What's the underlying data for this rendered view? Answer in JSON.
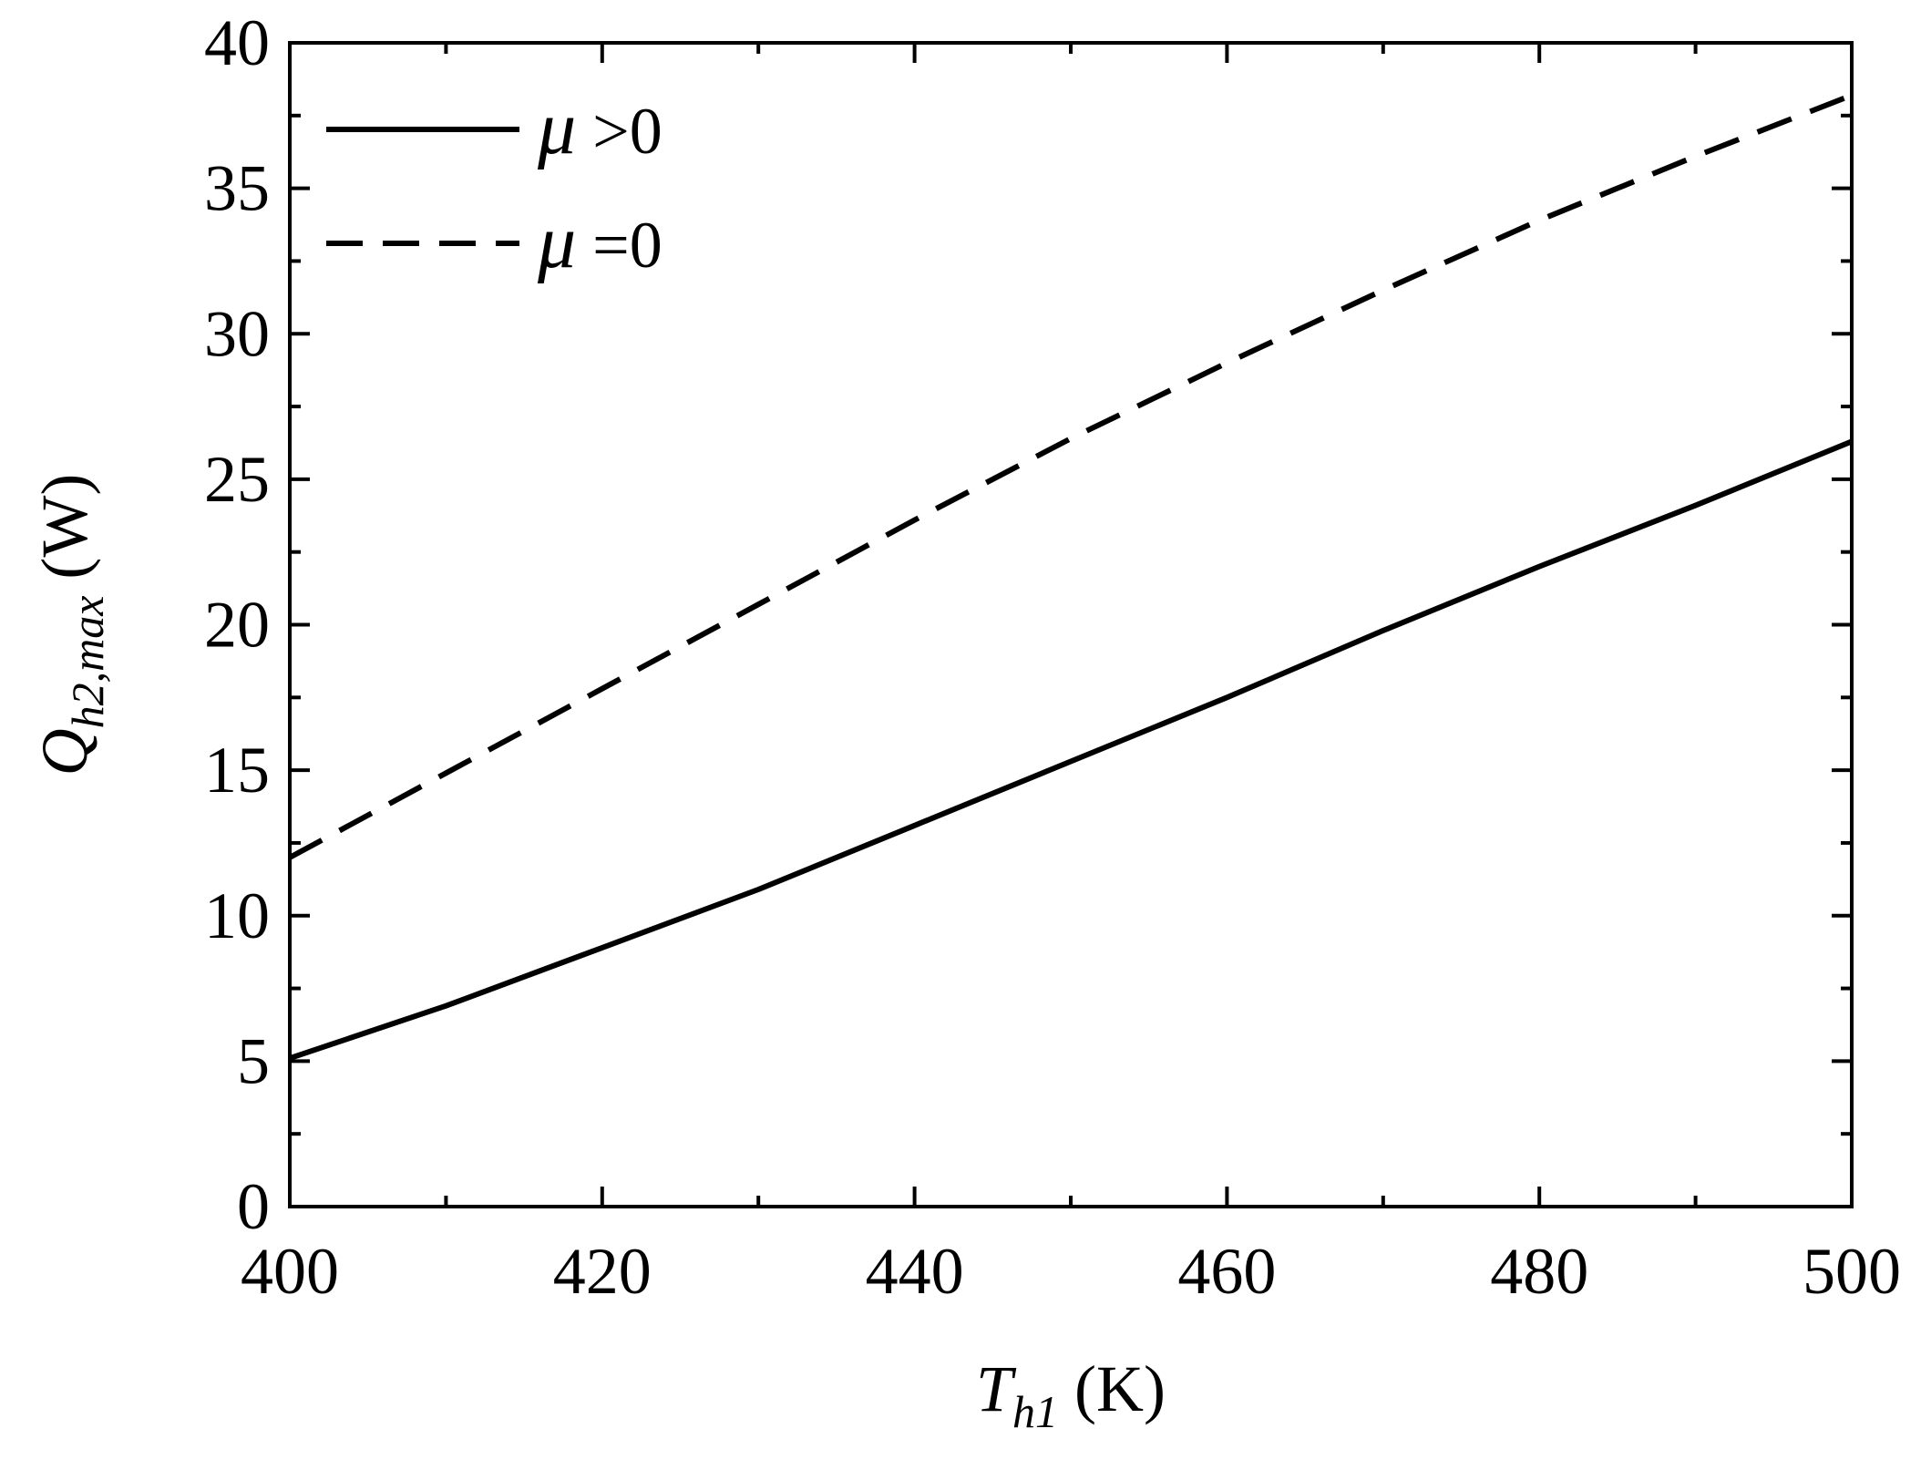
{
  "chart_data": {
    "type": "line",
    "xlabel": {
      "main": "T",
      "sub": "h1",
      "unit": " (K)"
    },
    "ylabel": {
      "main": "Q",
      "sub": "h2,max",
      "unit": " (W)"
    },
    "xlim": [
      400,
      500
    ],
    "ylim": [
      0,
      40
    ],
    "xticks": [
      400,
      420,
      440,
      460,
      480,
      500
    ],
    "yticks": [
      0,
      5,
      10,
      15,
      20,
      25,
      30,
      35,
      40
    ],
    "grid": false,
    "legend_position": "top-left",
    "series": [
      {
        "name": "μ >0",
        "name_symbol": "μ",
        "name_rest": " >0",
        "style": "solid",
        "color": "#000000",
        "x": [
          400,
          410,
          420,
          430,
          440,
          450,
          460,
          470,
          480,
          490,
          500
        ],
        "y": [
          5.1,
          6.9,
          8.9,
          10.9,
          13.1,
          15.3,
          17.5,
          19.8,
          22.0,
          24.1,
          26.3
        ]
      },
      {
        "name": "μ =0",
        "name_symbol": "μ",
        "name_rest": " =0",
        "style": "dashed",
        "color": "#000000",
        "x": [
          400,
          410,
          420,
          430,
          440,
          450,
          460,
          470,
          480,
          490,
          500
        ],
        "y": [
          12.0,
          14.9,
          17.8,
          20.7,
          23.6,
          26.4,
          29.0,
          31.5,
          33.9,
          36.1,
          38.2
        ]
      }
    ]
  }
}
